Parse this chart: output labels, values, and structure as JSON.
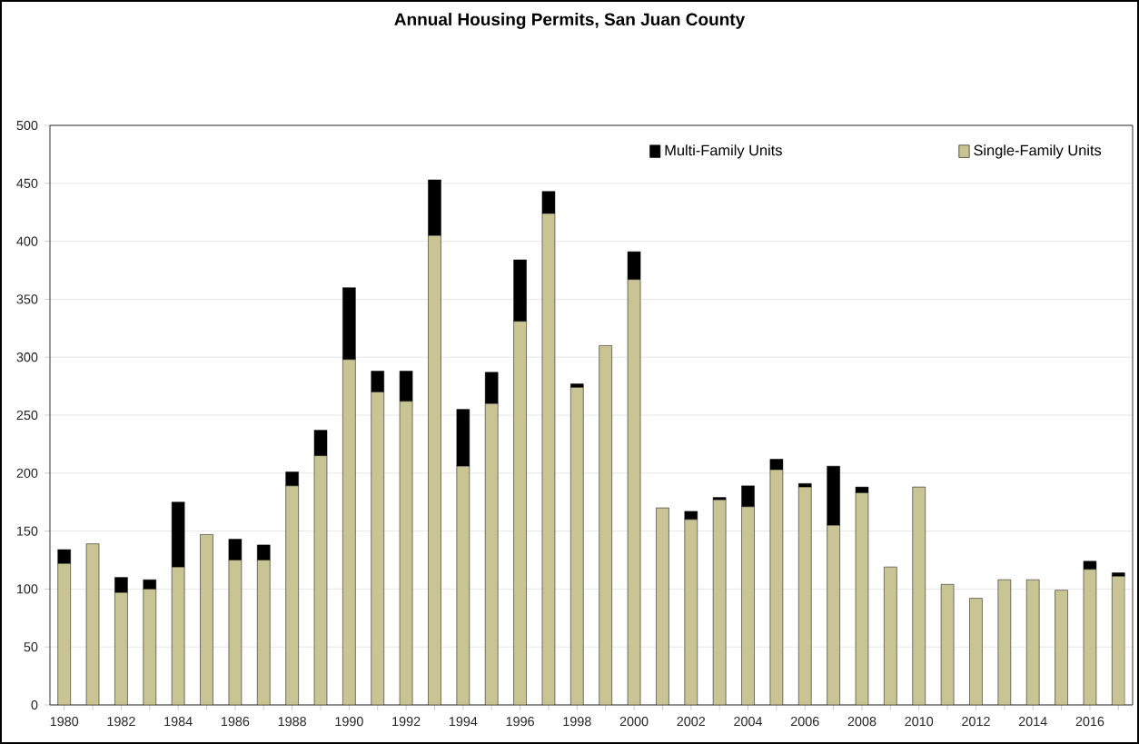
{
  "chart_data": {
    "type": "bar",
    "title": "Annual Housing Permits, San Juan County",
    "categories": [
      "1980",
      null,
      "1982",
      null,
      "1984",
      null,
      "1986",
      null,
      "1988",
      null,
      "1990",
      null,
      "1992",
      null,
      "1994",
      null,
      "1996",
      null,
      "1998",
      null,
      "2000",
      null,
      "2002",
      null,
      "2004",
      null,
      "2006",
      null,
      "2008",
      null,
      "2010",
      null,
      "2012",
      null,
      "2014",
      null,
      "2016",
      null
    ],
    "stacked": true,
    "series": [
      {
        "name": "Single-Family Units",
        "color": "#c8c493",
        "values": [
          122,
          139,
          97,
          100,
          119,
          147,
          125,
          125,
          189,
          215,
          298,
          270,
          262,
          405,
          206,
          260,
          331,
          424,
          274,
          310,
          367,
          170,
          160,
          177,
          171,
          203,
          188,
          155,
          183,
          119,
          188,
          104,
          92,
          108,
          108,
          99,
          117,
          111
        ]
      },
      {
        "name": "Multi-Family Units",
        "color": "#000000",
        "values": [
          12,
          0,
          13,
          8,
          56,
          0,
          18,
          13,
          12,
          22,
          62,
          18,
          26,
          48,
          49,
          27,
          53,
          19,
          3,
          0,
          24,
          0,
          7,
          2,
          18,
          9,
          3,
          51,
          5,
          0,
          0,
          0,
          0,
          0,
          0,
          0,
          7,
          3
        ]
      }
    ],
    "ylim": [
      0,
      500
    ],
    "yticks": [
      0,
      50,
      100,
      150,
      200,
      250,
      300,
      350,
      400,
      450,
      500
    ],
    "grid": "y",
    "legend": "top"
  }
}
